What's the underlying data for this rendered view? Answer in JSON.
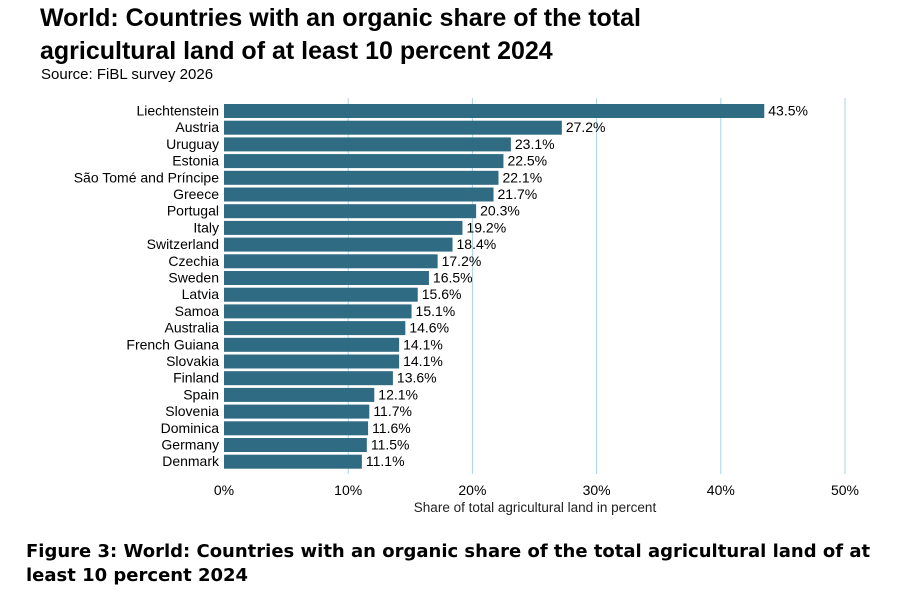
{
  "header": {
    "title_line1": "World: Countries with an organic share of the total",
    "title_line2": "agricultural land of at least 10 percent  2024",
    "source": "Source: FiBL survey 2026"
  },
  "figure_caption": {
    "line1": "Figure 3: World: Countries with an organic share of the total agricultural land of at",
    "line2": "least 10 percent 2024"
  },
  "colors": {
    "bar": "#306b84",
    "grid": "#a9d2e3",
    "text": "#000000"
  },
  "chart_data": {
    "type": "bar",
    "orientation": "horizontal",
    "title": "World: Countries with an organic share of the total agricultural land of at least 10 percent  2024",
    "subtitle": "Source: FiBL survey 2026",
    "xlabel": "Share of total agricultural land in percent",
    "ylabel": "",
    "xlim": [
      0,
      50
    ],
    "xticks": [
      0,
      10,
      20,
      30,
      40,
      50
    ],
    "xtick_labels": [
      "0%",
      "10%",
      "20%",
      "30%",
      "40%",
      "50%"
    ],
    "grid": "vertical",
    "legend": "none",
    "categories": [
      "Liechtenstein",
      "Austria",
      "Uruguay",
      "Estonia",
      "São Tomé and Príncipe",
      "Greece",
      "Portugal",
      "Italy",
      "Switzerland",
      "Czechia",
      "Sweden",
      "Latvia",
      "Samoa",
      "Australia",
      "French Guiana",
      "Slovakia",
      "Finland",
      "Spain",
      "Slovenia",
      "Dominica",
      "Germany",
      "Denmark"
    ],
    "values": [
      43.5,
      27.2,
      23.1,
      22.5,
      22.1,
      21.7,
      20.3,
      19.2,
      18.4,
      17.2,
      16.5,
      15.6,
      15.1,
      14.6,
      14.1,
      14.1,
      13.6,
      12.1,
      11.7,
      11.6,
      11.5,
      11.1
    ],
    "value_labels": [
      "43.5%",
      "27.2%",
      "23.1%",
      "22.5%",
      "22.1%",
      "21.7%",
      "20.3%",
      "19.2%",
      "18.4%",
      "17.2%",
      "16.5%",
      "15.6%",
      "15.1%",
      "14.6%",
      "14.1%",
      "14.1%",
      "13.6%",
      "12.1%",
      "11.7%",
      "11.6%",
      "11.5%",
      "11.1%"
    ]
  }
}
